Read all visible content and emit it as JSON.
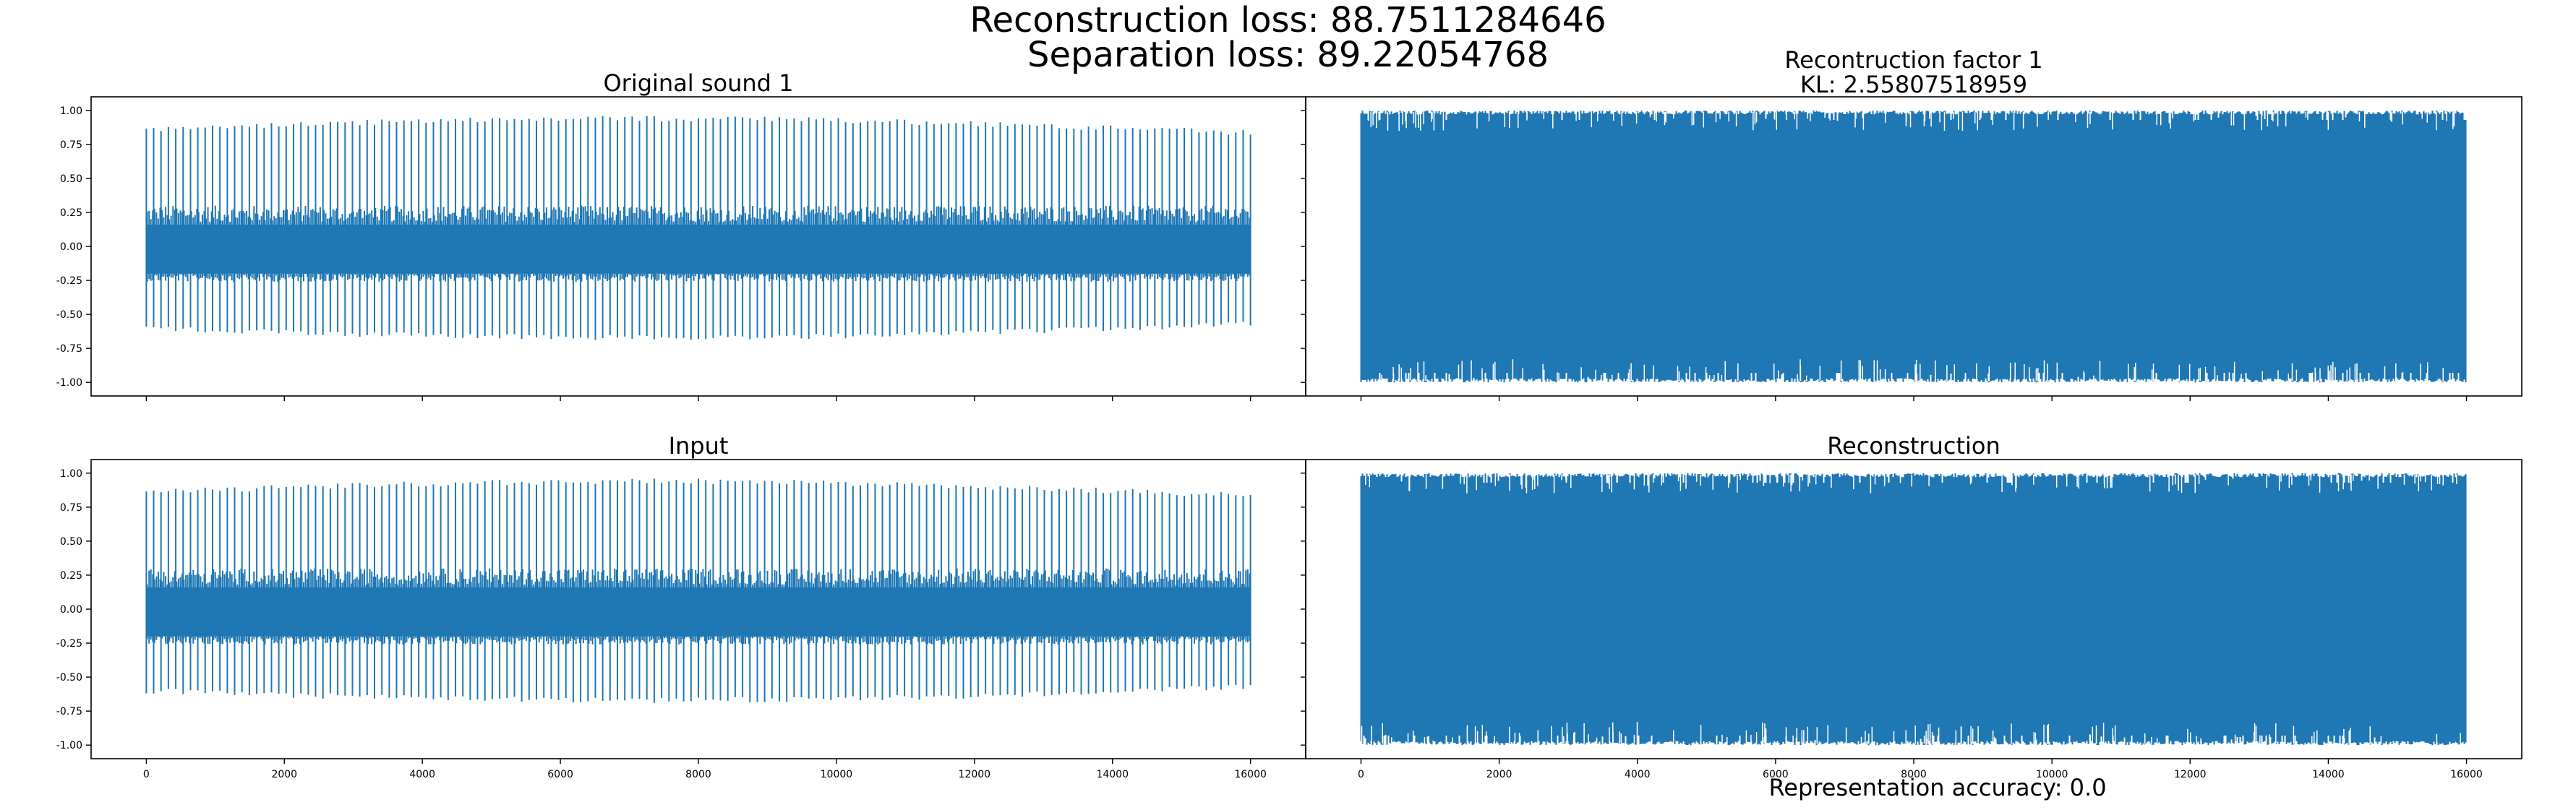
{
  "figure": {
    "suptitle_line1": "Reconstruction loss: 88.7511284646",
    "suptitle_line2": "Separation loss: 89.22054768",
    "footer_text": "Representation accuracy: 0.0",
    "line_color": "#1f77b4"
  },
  "chart_data": [
    {
      "type": "line",
      "title": "Original sound 1",
      "subtitle": "",
      "xlabel": "",
      "ylabel": "",
      "xlim": [
        -800,
        16800
      ],
      "ylim": [
        -1.1,
        1.1
      ],
      "yticks": [
        -1.0,
        -0.75,
        -0.5,
        -0.25,
        0.0,
        0.25,
        0.5,
        0.75,
        1.0
      ],
      "ytick_labels": [
        "-1.00",
        "-0.75",
        "-0.50",
        "-0.25",
        "0.00",
        "0.25",
        "0.50",
        "0.75",
        "1.00"
      ],
      "xticks": [
        0,
        2000,
        4000,
        6000,
        8000,
        10000,
        12000,
        14000,
        16000
      ],
      "xtick_labels": [],
      "series": [
        {
          "x_range": [
            0,
            16000
          ],
          "pulses": 150,
          "upper": [
            0.92,
            0.95
          ],
          "lower": [
            -0.65,
            -0.55
          ],
          "band": [
            -0.25,
            0.28
          ]
        }
      ]
    },
    {
      "type": "line",
      "title": "Recontruction factor 1",
      "subtitle": "KL: 2.55807518959",
      "xlabel": "",
      "ylabel": "",
      "xlim": [
        -800,
        16800
      ],
      "ylim": [
        -1.1,
        1.1
      ],
      "yticks": [
        -1.0,
        -0.75,
        -0.5,
        -0.25,
        0.0,
        0.25,
        0.5,
        0.75,
        1.0
      ],
      "ytick_labels": [],
      "xticks": [
        0,
        2000,
        4000,
        6000,
        8000,
        10000,
        12000,
        14000,
        16000
      ],
      "xtick_labels": [],
      "series": [
        {
          "x_range": [
            0,
            16000
          ],
          "dense": true,
          "upper": [
            0.95,
            1.0
          ],
          "lower": [
            -1.0,
            -0.95
          ]
        }
      ]
    },
    {
      "type": "line",
      "title": "Input",
      "subtitle": "",
      "xlabel": "",
      "ylabel": "",
      "xlim": [
        -800,
        16800
      ],
      "ylim": [
        -1.1,
        1.1
      ],
      "yticks": [
        -1.0,
        -0.75,
        -0.5,
        -0.25,
        0.0,
        0.25,
        0.5,
        0.75,
        1.0
      ],
      "ytick_labels": [
        "-1.00",
        "-0.75",
        "-0.50",
        "-0.25",
        "0.00",
        "0.25",
        "0.50",
        "0.75",
        "1.00"
      ],
      "xticks": [
        0,
        2000,
        4000,
        6000,
        8000,
        10000,
        12000,
        14000,
        16000
      ],
      "xtick_labels": [
        "0",
        "2000",
        "4000",
        "6000",
        "8000",
        "10000",
        "12000",
        "14000",
        "16000"
      ],
      "series": [
        {
          "x_range": [
            0,
            16000
          ],
          "pulses": 150,
          "upper": [
            0.92,
            0.95
          ],
          "lower": [
            -0.65,
            -0.55
          ],
          "band": [
            -0.25,
            0.28
          ]
        }
      ]
    },
    {
      "type": "line",
      "title": "Reconstruction",
      "subtitle": "",
      "xlabel": "",
      "ylabel": "",
      "xlim": [
        -800,
        16800
      ],
      "ylim": [
        -1.1,
        1.1
      ],
      "yticks": [
        -1.0,
        -0.75,
        -0.5,
        -0.25,
        0.0,
        0.25,
        0.5,
        0.75,
        1.0
      ],
      "ytick_labels": [],
      "xticks": [
        0,
        2000,
        4000,
        6000,
        8000,
        10000,
        12000,
        14000,
        16000
      ],
      "xtick_labels": [
        "0",
        "2000",
        "4000",
        "6000",
        "8000",
        "10000",
        "12000",
        "14000",
        "16000"
      ],
      "series": [
        {
          "x_range": [
            0,
            16000
          ],
          "dense": true,
          "upper": [
            0.95,
            1.0
          ],
          "lower": [
            -1.0,
            -0.95
          ]
        }
      ]
    }
  ]
}
